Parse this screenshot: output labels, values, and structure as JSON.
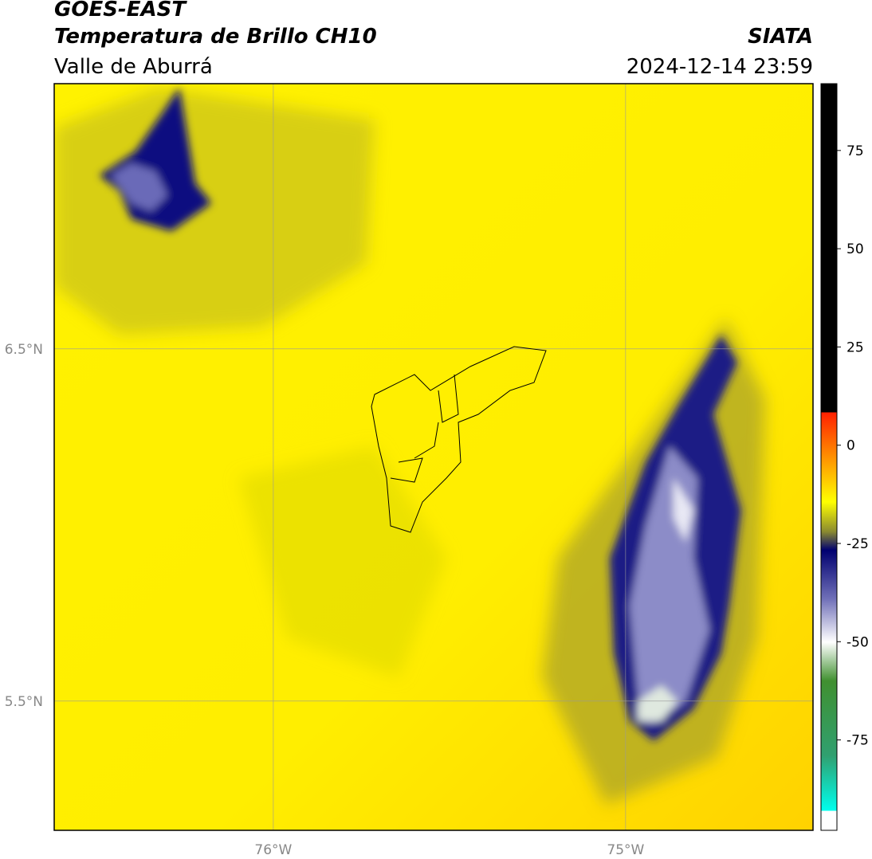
{
  "header": {
    "title": "GOES-EAST",
    "subtitle": "Temperatura de Brillo CH10",
    "region": "Valle de Aburrá",
    "source": "SIATA",
    "datetime": "2024-12-14 23:59"
  },
  "map": {
    "latlim": [
      5.133,
      7.253
    ],
    "lonlim": [
      -76.622,
      -74.468
    ],
    "lat_ticks": [
      {
        "value": 6.5,
        "label": "6.5°N"
      },
      {
        "value": 5.5,
        "label": "5.5°N"
      }
    ],
    "lon_ticks": [
      {
        "value": -76,
        "label": "76°W"
      },
      {
        "value": -75,
        "label": "75°W"
      }
    ]
  },
  "colorbar": {
    "lim": [
      -98,
      92
    ],
    "ticks": [
      75,
      50,
      25,
      0,
      -25,
      -50,
      -75
    ]
  }
}
